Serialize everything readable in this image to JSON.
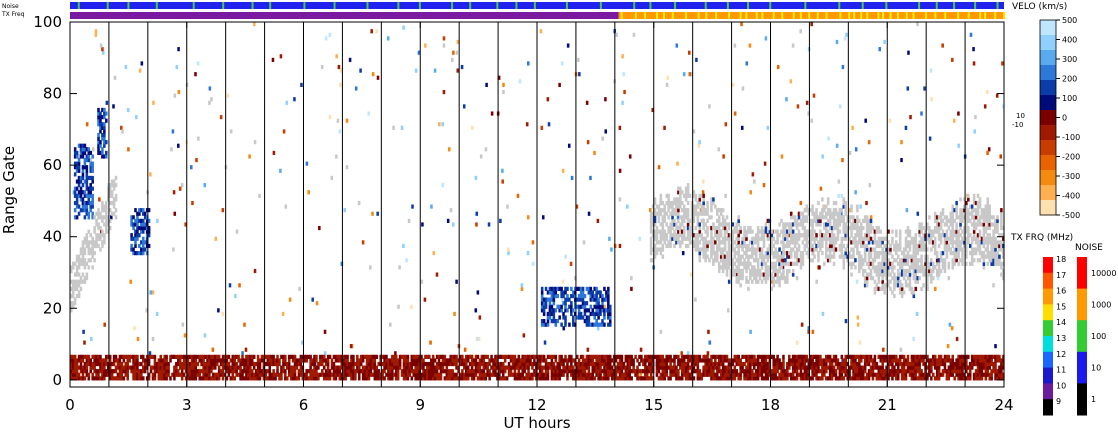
{
  "status_bars": {
    "noise_label": "Noise",
    "txfreq_label": "TX Freq",
    "noise_color": "#2222ee",
    "noise_mark_color": "#44cc44",
    "txfreq_before_color": "#7a1aa0",
    "txfreq_after_color": "#ff9900",
    "txfreq_after_mark_color": "#ffee00",
    "txfreq_change_hour": 14.1
  },
  "chart_data": {
    "type": "heatmap",
    "title": "",
    "xlabel": "UT hours",
    "ylabel": "Range Gate",
    "xlim": [
      0,
      24
    ],
    "ylim": [
      -2,
      100
    ],
    "x_ticks": [
      "0",
      "3",
      "6",
      "9",
      "12",
      "15",
      "18",
      "21",
      "24"
    ],
    "y_ticks": [
      "0",
      "20",
      "40",
      "60",
      "80",
      "100"
    ],
    "x_tick_values": [
      0,
      3,
      6,
      9,
      12,
      15,
      18,
      21,
      24
    ],
    "y_tick_values": [
      0,
      20,
      40,
      60,
      80,
      100
    ],
    "scan_boundaries_hours": [
      1,
      2,
      3,
      4,
      5,
      6,
      7,
      8,
      9,
      10,
      11,
      12,
      13,
      14,
      15,
      16,
      17,
      18,
      19,
      20,
      21,
      22,
      23
    ],
    "ground_scatter_color": "#c8c8c8",
    "regions": [
      {
        "label": "near-range echoes",
        "hours": [
          0,
          24
        ],
        "gates": [
          0,
          6
        ],
        "velocity": "negative"
      },
      {
        "label": "positive velocity patch",
        "hours": [
          0.1,
          0.6
        ],
        "gates": [
          45,
          65
        ],
        "velocity": "positive"
      },
      {
        "label": "positive velocity patch",
        "hours": [
          0.7,
          0.95
        ],
        "gates": [
          62,
          75
        ],
        "velocity": "positive"
      },
      {
        "label": "positive velocity patch",
        "hours": [
          1.55,
          2.05
        ],
        "gates": [
          35,
          47
        ],
        "velocity": "positive"
      },
      {
        "label": "ground scatter",
        "hours": [
          0,
          1.2
        ],
        "gates": [
          25,
          58
        ],
        "velocity": "ground"
      },
      {
        "label": "positive velocity band",
        "hours": [
          12.1,
          13.9
        ],
        "gates": [
          15,
          25
        ],
        "velocity": "positive"
      },
      {
        "label": "ground scatter band",
        "hours": [
          14.9,
          24
        ],
        "gates": [
          25,
          55
        ],
        "velocity": "ground"
      }
    ]
  },
  "velocity_scale": {
    "title": "VELO (km/s)",
    "ticks": [
      "500",
      "400",
      "300",
      "200",
      "100",
      "0",
      "-100",
      "-200",
      "-300",
      "-400",
      "-500"
    ],
    "inset_labels": [
      "10",
      "-10"
    ],
    "colors": [
      "#bfe6ff",
      "#8fd0ff",
      "#5aaaf0",
      "#2d78d8",
      "#0c3ca8",
      "#000a7a",
      "#7a0000",
      "#a01a00",
      "#c83c00",
      "#e86400",
      "#f58a10",
      "#ffb050",
      "#ffe0b0"
    ]
  },
  "txfreq_scale": {
    "title": "TX FRQ (MHz)",
    "ticks": [
      "18",
      "17",
      "16",
      "15",
      "14",
      "13",
      "12",
      "11",
      "10",
      "9"
    ],
    "colors": [
      "#ff0000",
      "#ff5500",
      "#ff9900",
      "#ffdd00",
      "#33cc33",
      "#00dddd",
      "#1a66ff",
      "#1a1acc",
      "#6a1a9a",
      "#000000"
    ]
  },
  "noise_scale": {
    "title": "NOISE",
    "ticks": [
      "10000",
      "1000",
      "100",
      "10",
      "1"
    ],
    "colors": [
      "#ff0000",
      "#ff9900",
      "#33cc33",
      "#1a1aee",
      "#000000"
    ]
  }
}
